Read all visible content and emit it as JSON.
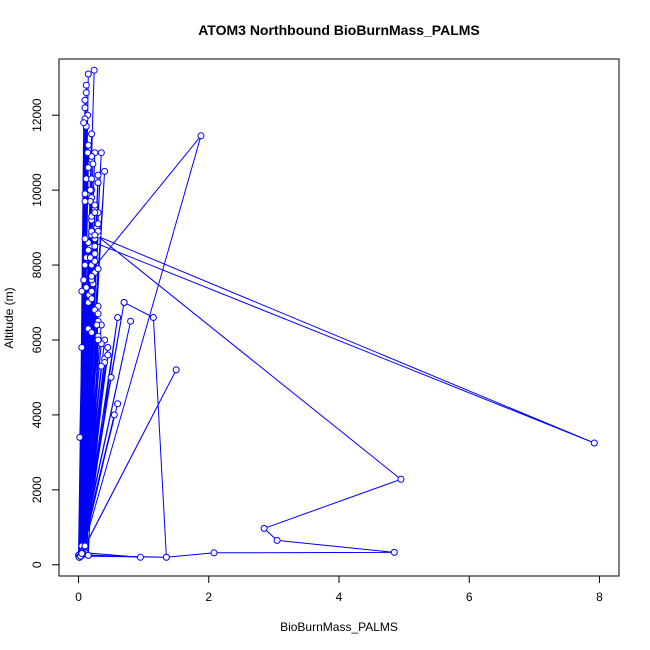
{
  "chart_data": {
    "type": "line",
    "title": "ATOM3 Northbound BioBurnMass_PALMS",
    "xlabel": "BioBurnMass_PALMS",
    "ylabel": "Altitude (m)",
    "xlim": [
      -0.3,
      8.3
    ],
    "ylim": [
      -300,
      13500
    ],
    "xticks": [
      0,
      2,
      4,
      6,
      8
    ],
    "yticks": [
      0,
      2000,
      4000,
      6000,
      8000,
      10000,
      12000
    ],
    "xtick_labels": [
      "0",
      "2",
      "4",
      "6",
      "8"
    ],
    "ytick_labels": [
      "0",
      "2000",
      "4000",
      "6000",
      "8000",
      "10000",
      "12000"
    ],
    "series_color": "#0000ff",
    "marker": "open-circle",
    "grid": false,
    "series": [
      {
        "x": [
          0.02,
          0.1,
          0.03,
          0.2,
          0.05,
          0.15,
          0.01,
          0.25,
          0.08,
          0.3,
          0.04,
          0.18,
          0.02,
          0.22,
          0.06,
          0.35,
          0.03,
          0.28,
          0.01,
          0.12,
          0.05,
          0.4,
          0.02,
          0.16,
          0.07,
          0.5,
          0.03,
          0.2,
          0.01,
          0.7,
          0.04,
          1.5,
          0.02,
          0.3,
          0.05,
          0.6,
          0.1,
          0.4,
          0.03,
          0.25,
          0.08,
          0.2,
          0.02,
          0.55,
          0.06,
          0.3,
          0.04,
          0.15,
          0.05,
          0.95,
          0.1,
          0.45,
          0.03,
          0.1,
          0.05,
          0.35,
          0.02,
          0.4,
          0.07,
          0.2,
          0.04,
          0.3,
          0.02,
          0.8,
          0.03,
          0.25,
          0.05,
          0.45,
          0.02,
          0.3,
          0.05,
          0.2,
          0.03,
          0.6,
          0.02,
          0.7,
          1.15,
          1.35,
          0.05,
          0.3,
          0.04,
          0.25,
          0.06,
          0.35,
          0.02,
          0.15,
          0.04,
          0.2,
          0.02,
          0.3,
          0.05,
          0.18,
          0.03,
          0.25,
          0.02,
          0.4,
          0.05,
          0.3,
          0.03,
          0.2,
          0.06,
          0.15,
          0.02,
          0.25,
          0.04,
          0.3,
          0.03,
          0.12,
          0.05,
          0.2,
          0.02,
          0.35,
          0.04,
          0.18,
          0.02,
          0.12,
          0.05,
          0.25,
          0.03,
          0.2,
          0.04,
          0.3,
          0.02,
          0.15,
          0.05,
          0.2,
          0.03,
          0.1,
          0.06,
          0.25,
          0.03,
          0.2,
          0.02,
          0.15,
          0.04,
          0.25,
          0.02,
          0.3,
          0.05,
          0.2,
          0.03,
          0.28,
          0.02,
          0.12,
          0.04,
          0.2,
          0.01,
          0.14,
          0.02,
          0.22,
          0.0,
          0.1,
          0.02,
          0.25,
          0.03,
          0.2,
          0.05,
          0.12,
          0.01,
          0.18,
          0.03,
          0.12,
          0.01,
          0.24,
          0.02,
          0.08,
          0.01,
          0.2,
          0.03,
          0.14,
          0.02,
          0.1,
          0.01,
          0.15,
          0.03,
          1.35,
          2.08,
          4.85,
          3.05,
          2.85,
          4.95,
          0.2,
          0.1,
          0.05,
          1.88,
          0.08,
          0.25,
          7.92,
          0.1,
          0.3,
          0.15,
          0.05,
          0.1,
          0.02,
          0.05
        ],
        "y": [
          200,
          8000,
          300,
          10000,
          500,
          7000,
          250,
          9500,
          400,
          6500,
          280,
          8500,
          220,
          7500,
          350,
          11000,
          260,
          9000,
          240,
          8200,
          300,
          6000,
          230,
          7200,
          320,
          5000,
          250,
          9800,
          210,
          7000,
          300,
          5200,
          220,
          8800,
          260,
          6600,
          340,
          5500,
          230,
          7800,
          280,
          9200,
          210,
          4000,
          300,
          6900,
          250,
          8600,
          270,
          200,
          320,
          5800,
          240,
          9900,
          260,
          6400,
          220,
          10500,
          300,
          7300,
          250,
          8900,
          230,
          6500,
          240,
          11000,
          270,
          5600,
          210,
          10200,
          260,
          8000,
          240,
          4300,
          220,
          7000,
          6600,
          200,
          250,
          9400,
          280,
          6800,
          300,
          5900,
          230,
          8400,
          260,
          7600,
          220,
          6100,
          250,
          9700,
          230,
          8100,
          210,
          5400,
          260,
          10400,
          240,
          7700,
          280,
          6300,
          220,
          8700,
          250,
          9100,
          230,
          7400,
          260,
          6200,
          220,
          5300,
          250,
          10000,
          230,
          11700,
          260,
          8300,
          240,
          9300,
          250,
          6700,
          220,
          11200,
          260,
          7100,
          230,
          12400,
          270,
          8500,
          240,
          10800,
          220,
          13100,
          250,
          9600,
          230,
          7900,
          260,
          11500,
          240,
          6400,
          220,
          12600,
          250,
          8800,
          210,
          12000,
          230,
          10700,
          250,
          11900,
          220,
          9400,
          240,
          10900,
          260,
          12800,
          210,
          8200,
          230,
          10300,
          200,
          13200,
          220,
          11800,
          210,
          10300,
          230,
          11000,
          220,
          12200,
          200,
          10600,
          230,
          200,
          320,
          330,
          650,
          970,
          2280,
          8900,
          500,
          300,
          11450,
          7600,
          8800,
          3250,
          8700,
          6000,
          250,
          7300,
          9700,
          3400,
          5800
        ]
      }
    ]
  }
}
